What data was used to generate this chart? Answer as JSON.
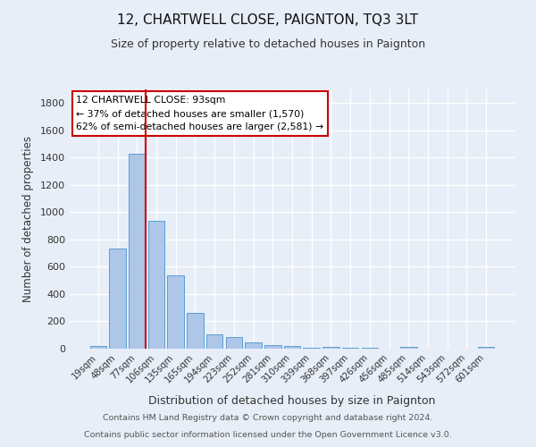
{
  "title": "12, CHARTWELL CLOSE, PAIGNTON, TQ3 3LT",
  "subtitle": "Size of property relative to detached houses in Paignton",
  "xlabel": "Distribution of detached houses by size in Paignton",
  "ylabel": "Number of detached properties",
  "footnote1": "Contains HM Land Registry data © Crown copyright and database right 2024.",
  "footnote2": "Contains public sector information licensed under the Open Government Licence v3.0.",
  "categories": [
    "19sqm",
    "48sqm",
    "77sqm",
    "106sqm",
    "135sqm",
    "165sqm",
    "194sqm",
    "223sqm",
    "252sqm",
    "281sqm",
    "310sqm",
    "339sqm",
    "368sqm",
    "397sqm",
    "426sqm",
    "456sqm",
    "485sqm",
    "514sqm",
    "543sqm",
    "572sqm",
    "601sqm"
  ],
  "values": [
    20,
    735,
    1430,
    935,
    535,
    262,
    102,
    87,
    45,
    28,
    20,
    8,
    15,
    5,
    5,
    2,
    10,
    0,
    0,
    0,
    10
  ],
  "bar_color": "#aec6e8",
  "bar_edge_color": "#5a9fd4",
  "bg_color": "#e8eef8",
  "grid_color": "#ffffff",
  "vline_color": "#cc0000",
  "annotation_text": "12 CHARTWELL CLOSE: 93sqm\n← 37% of detached houses are smaller (1,570)\n62% of semi-detached houses are larger (2,581) →",
  "annotation_box_color": "#ffffff",
  "annotation_box_edge": "#cc0000",
  "ylim": [
    0,
    1900
  ],
  "yticks": [
    0,
    200,
    400,
    600,
    800,
    1000,
    1200,
    1400,
    1600,
    1800
  ],
  "vline_pos": 2.45
}
